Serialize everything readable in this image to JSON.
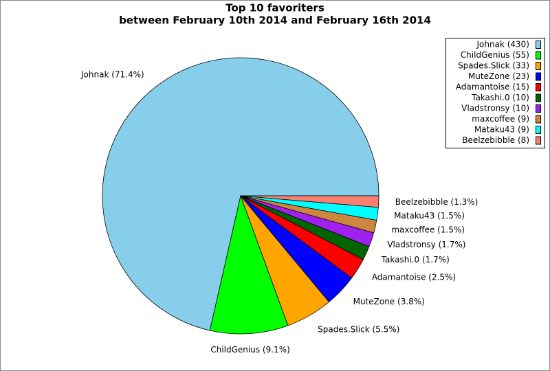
{
  "chart_data": {
    "type": "pie",
    "title": "Top 10 favoriters",
    "subtitle": "between February 10th 2014 and February 16th 2014",
    "categories": [
      "Johnak",
      "ChildGenius",
      "Spades.Slick",
      "MuteZone",
      "Adamantoise",
      "Takashi.0",
      "Vladstronsy",
      "maxcoffee",
      "Mataku43",
      "Beelzebibble"
    ],
    "values": [
      430,
      55,
      33,
      23,
      15,
      10,
      10,
      9,
      9,
      8
    ],
    "legend_labels": [
      "Johnak (430)",
      "ChildGenius (55)",
      "Spades.Slick (33)",
      "MuteZone (23)",
      "Adamantoise (15)",
      "Takashi.0 (10)",
      "Vladstronsy (10)",
      "maxcoffee (9)",
      "Mataku43 (9)",
      "Beelzebibble (8)"
    ],
    "slice_labels": [
      "Johnak (71.4%)",
      "ChildGenius (9.1%)",
      "Spades.Slick (5.5%)",
      "MuteZone (3.8%)",
      "Adamantoise (2.5%)",
      "Takashi.0 (1.7%)",
      "Vladstronsy (1.7%)",
      "maxcoffee (1.5%)",
      "Mataku43 (1.5%)",
      "Beelzebibble (1.3%)"
    ],
    "colors": [
      "#87ceeb",
      "#00ff00",
      "#ffa500",
      "#0000ff",
      "#ff0000",
      "#006400",
      "#a020f0",
      "#cd853f",
      "#00ffff",
      "#fa8072"
    ],
    "legend": "top-right"
  }
}
